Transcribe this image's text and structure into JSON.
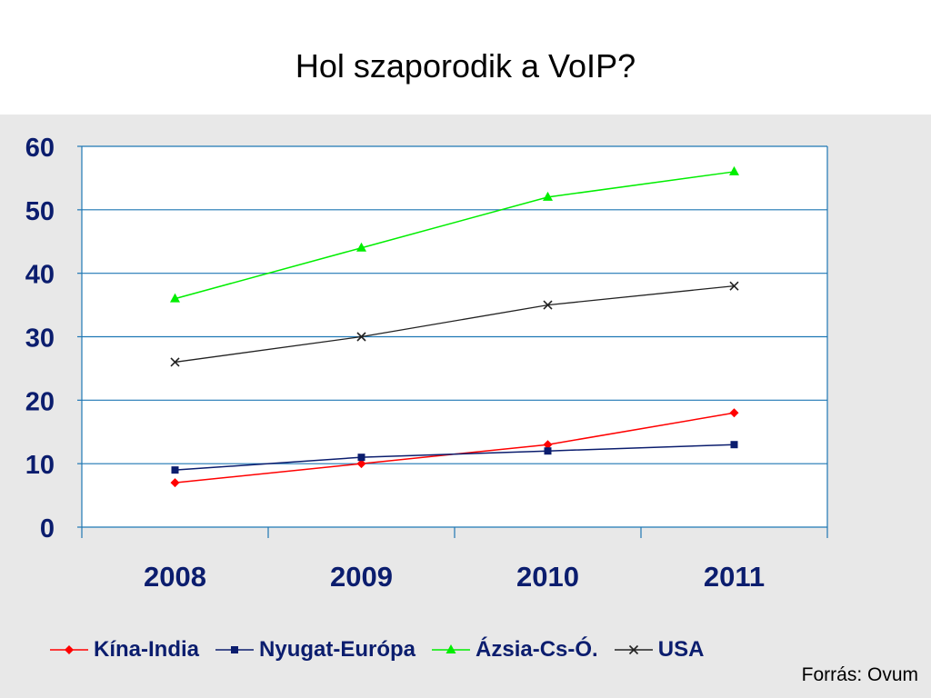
{
  "title": "Hol szaporodik a VoIP?",
  "source": "Forrás: Ovum",
  "chart_data": {
    "type": "line",
    "categories": [
      "2008",
      "2009",
      "2010",
      "2011"
    ],
    "ylim": [
      0,
      60
    ],
    "yticks": [
      "0",
      "10",
      "20",
      "30",
      "40",
      "50",
      "60"
    ],
    "grid": true,
    "legend_position": "bottom",
    "series": [
      {
        "name": "Kína-India",
        "values": [
          7,
          10,
          13,
          18
        ],
        "color": "#ff0000",
        "marker": "diamond"
      },
      {
        "name": "Nyugat-Európa",
        "values": [
          9,
          11,
          12,
          13
        ],
        "color": "#0b1d6e",
        "marker": "square"
      },
      {
        "name": "Ázsia-Cs-Ó.",
        "values": [
          36,
          44,
          52,
          56
        ],
        "color": "#00ee00",
        "marker": "triangle"
      },
      {
        "name": "USA",
        "values": [
          26,
          30,
          35,
          38
        ],
        "color": "#222222",
        "marker": "x"
      }
    ]
  }
}
